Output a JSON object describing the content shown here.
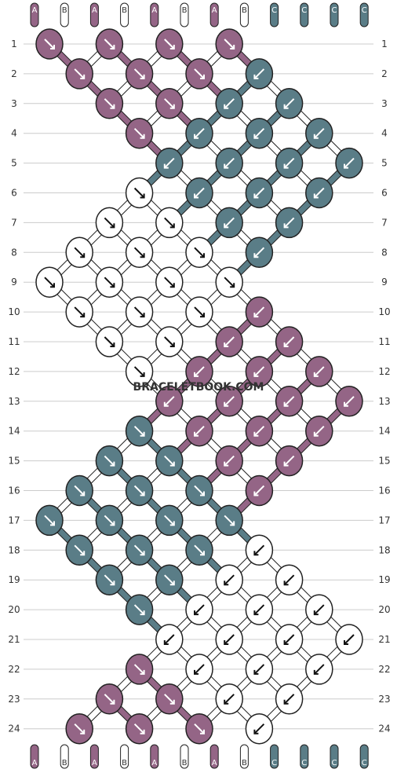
{
  "watermark": "BRACELETBOOK.COM",
  "colors": {
    "A": "#946586",
    "B": "#ffffff",
    "C": "#5a7d87",
    "outline": "#222222",
    "grid": "#cccccc"
  },
  "strands_top": [
    "A",
    "B",
    "A",
    "B",
    "A",
    "B",
    "A",
    "B",
    "C",
    "C",
    "C",
    "C"
  ],
  "strands_bottom": [
    "A",
    "B",
    "A",
    "B",
    "A",
    "B",
    "A",
    "B",
    "C",
    "C",
    "C",
    "C"
  ],
  "row_labels": [
    "1",
    "2",
    "3",
    "4",
    "5",
    "6",
    "7",
    "8",
    "9",
    "10",
    "11",
    "12",
    "13",
    "14",
    "15",
    "16",
    "17",
    "18",
    "19",
    "20",
    "21",
    "22",
    "23",
    "24"
  ],
  "knots": [
    {
      "row": 1,
      "col": 0,
      "color": "A",
      "dir": "R"
    },
    {
      "row": 1,
      "col": 2,
      "color": "A",
      "dir": "R"
    },
    {
      "row": 1,
      "col": 4,
      "color": "A",
      "dir": "R"
    },
    {
      "row": 1,
      "col": 6,
      "color": "A",
      "dir": "R"
    },
    {
      "row": 2,
      "col": 1,
      "color": "A",
      "dir": "R"
    },
    {
      "row": 2,
      "col": 3,
      "color": "A",
      "dir": "R"
    },
    {
      "row": 2,
      "col": 5,
      "color": "A",
      "dir": "R"
    },
    {
      "row": 2,
      "col": 7,
      "color": "C",
      "dir": "L"
    },
    {
      "row": 3,
      "col": 2,
      "color": "A",
      "dir": "R"
    },
    {
      "row": 3,
      "col": 4,
      "color": "A",
      "dir": "R"
    },
    {
      "row": 3,
      "col": 6,
      "color": "C",
      "dir": "L"
    },
    {
      "row": 3,
      "col": 8,
      "color": "C",
      "dir": "L"
    },
    {
      "row": 4,
      "col": 3,
      "color": "A",
      "dir": "R"
    },
    {
      "row": 4,
      "col": 5,
      "color": "C",
      "dir": "L"
    },
    {
      "row": 4,
      "col": 7,
      "color": "C",
      "dir": "L"
    },
    {
      "row": 4,
      "col": 9,
      "color": "C",
      "dir": "L"
    },
    {
      "row": 5,
      "col": 4,
      "color": "C",
      "dir": "L"
    },
    {
      "row": 5,
      "col": 6,
      "color": "C",
      "dir": "L"
    },
    {
      "row": 5,
      "col": 8,
      "color": "C",
      "dir": "L"
    },
    {
      "row": 5,
      "col": 10,
      "color": "C",
      "dir": "L"
    },
    {
      "row": 6,
      "col": 3,
      "color": "B",
      "dir": "R"
    },
    {
      "row": 6,
      "col": 5,
      "color": "C",
      "dir": "L"
    },
    {
      "row": 6,
      "col": 7,
      "color": "C",
      "dir": "L"
    },
    {
      "row": 6,
      "col": 9,
      "color": "C",
      "dir": "L"
    },
    {
      "row": 7,
      "col": 2,
      "color": "B",
      "dir": "R"
    },
    {
      "row": 7,
      "col": 4,
      "color": "B",
      "dir": "R"
    },
    {
      "row": 7,
      "col": 6,
      "color": "C",
      "dir": "L"
    },
    {
      "row": 7,
      "col": 8,
      "color": "C",
      "dir": "L"
    },
    {
      "row": 8,
      "col": 1,
      "color": "B",
      "dir": "R"
    },
    {
      "row": 8,
      "col": 3,
      "color": "B",
      "dir": "R"
    },
    {
      "row": 8,
      "col": 5,
      "color": "B",
      "dir": "R"
    },
    {
      "row": 8,
      "col": 7,
      "color": "C",
      "dir": "L"
    },
    {
      "row": 9,
      "col": 0,
      "color": "B",
      "dir": "R"
    },
    {
      "row": 9,
      "col": 2,
      "color": "B",
      "dir": "R"
    },
    {
      "row": 9,
      "col": 4,
      "color": "B",
      "dir": "R"
    },
    {
      "row": 9,
      "col": 6,
      "color": "B",
      "dir": "R"
    },
    {
      "row": 10,
      "col": 1,
      "color": "B",
      "dir": "R"
    },
    {
      "row": 10,
      "col": 3,
      "color": "B",
      "dir": "R"
    },
    {
      "row": 10,
      "col": 5,
      "color": "B",
      "dir": "R"
    },
    {
      "row": 10,
      "col": 7,
      "color": "A",
      "dir": "L"
    },
    {
      "row": 11,
      "col": 2,
      "color": "B",
      "dir": "R"
    },
    {
      "row": 11,
      "col": 4,
      "color": "B",
      "dir": "R"
    },
    {
      "row": 11,
      "col": 6,
      "color": "A",
      "dir": "L"
    },
    {
      "row": 11,
      "col": 8,
      "color": "A",
      "dir": "L"
    },
    {
      "row": 12,
      "col": 3,
      "color": "B",
      "dir": "R"
    },
    {
      "row": 12,
      "col": 5,
      "color": "A",
      "dir": "L"
    },
    {
      "row": 12,
      "col": 7,
      "color": "A",
      "dir": "L"
    },
    {
      "row": 12,
      "col": 9,
      "color": "A",
      "dir": "L"
    },
    {
      "row": 13,
      "col": 4,
      "color": "A",
      "dir": "L"
    },
    {
      "row": 13,
      "col": 6,
      "color": "A",
      "dir": "L"
    },
    {
      "row": 13,
      "col": 8,
      "color": "A",
      "dir": "L"
    },
    {
      "row": 13,
      "col": 10,
      "color": "A",
      "dir": "L"
    },
    {
      "row": 14,
      "col": 3,
      "color": "C",
      "dir": "R"
    },
    {
      "row": 14,
      "col": 5,
      "color": "A",
      "dir": "L"
    },
    {
      "row": 14,
      "col": 7,
      "color": "A",
      "dir": "L"
    },
    {
      "row": 14,
      "col": 9,
      "color": "A",
      "dir": "L"
    },
    {
      "row": 15,
      "col": 2,
      "color": "C",
      "dir": "R"
    },
    {
      "row": 15,
      "col": 4,
      "color": "C",
      "dir": "R"
    },
    {
      "row": 15,
      "col": 6,
      "color": "A",
      "dir": "L"
    },
    {
      "row": 15,
      "col": 8,
      "color": "A",
      "dir": "L"
    },
    {
      "row": 16,
      "col": 1,
      "color": "C",
      "dir": "R"
    },
    {
      "row": 16,
      "col": 3,
      "color": "C",
      "dir": "R"
    },
    {
      "row": 16,
      "col": 5,
      "color": "C",
      "dir": "R"
    },
    {
      "row": 16,
      "col": 7,
      "color": "A",
      "dir": "L"
    },
    {
      "row": 17,
      "col": 0,
      "color": "C",
      "dir": "R"
    },
    {
      "row": 17,
      "col": 2,
      "color": "C",
      "dir": "R"
    },
    {
      "row": 17,
      "col": 4,
      "color": "C",
      "dir": "R"
    },
    {
      "row": 17,
      "col": 6,
      "color": "C",
      "dir": "R"
    },
    {
      "row": 18,
      "col": 1,
      "color": "C",
      "dir": "R"
    },
    {
      "row": 18,
      "col": 3,
      "color": "C",
      "dir": "R"
    },
    {
      "row": 18,
      "col": 5,
      "color": "C",
      "dir": "R"
    },
    {
      "row": 18,
      "col": 7,
      "color": "B",
      "dir": "L"
    },
    {
      "row": 19,
      "col": 2,
      "color": "C",
      "dir": "R"
    },
    {
      "row": 19,
      "col": 4,
      "color": "C",
      "dir": "R"
    },
    {
      "row": 19,
      "col": 6,
      "color": "B",
      "dir": "L"
    },
    {
      "row": 19,
      "col": 8,
      "color": "B",
      "dir": "L"
    },
    {
      "row": 20,
      "col": 3,
      "color": "C",
      "dir": "R"
    },
    {
      "row": 20,
      "col": 5,
      "color": "B",
      "dir": "L"
    },
    {
      "row": 20,
      "col": 7,
      "color": "B",
      "dir": "L"
    },
    {
      "row": 20,
      "col": 9,
      "color": "B",
      "dir": "L"
    },
    {
      "row": 21,
      "col": 4,
      "color": "B",
      "dir": "L"
    },
    {
      "row": 21,
      "col": 6,
      "color": "B",
      "dir": "L"
    },
    {
      "row": 21,
      "col": 8,
      "color": "B",
      "dir": "L"
    },
    {
      "row": 21,
      "col": 10,
      "color": "B",
      "dir": "L"
    },
    {
      "row": 22,
      "col": 3,
      "color": "A",
      "dir": "R"
    },
    {
      "row": 22,
      "col": 5,
      "color": "B",
      "dir": "L"
    },
    {
      "row": 22,
      "col": 7,
      "color": "B",
      "dir": "L"
    },
    {
      "row": 22,
      "col": 9,
      "color": "B",
      "dir": "L"
    },
    {
      "row": 23,
      "col": 2,
      "color": "A",
      "dir": "R"
    },
    {
      "row": 23,
      "col": 4,
      "color": "A",
      "dir": "R"
    },
    {
      "row": 23,
      "col": 6,
      "color": "B",
      "dir": "L"
    },
    {
      "row": 23,
      "col": 8,
      "color": "B",
      "dir": "L"
    },
    {
      "row": 24,
      "col": 1,
      "color": "A",
      "dir": "R"
    },
    {
      "row": 24,
      "col": 3,
      "color": "A",
      "dir": "R"
    },
    {
      "row": 24,
      "col": 5,
      "color": "A",
      "dir": "R"
    },
    {
      "row": 24,
      "col": 7,
      "color": "B",
      "dir": "L"
    }
  ]
}
